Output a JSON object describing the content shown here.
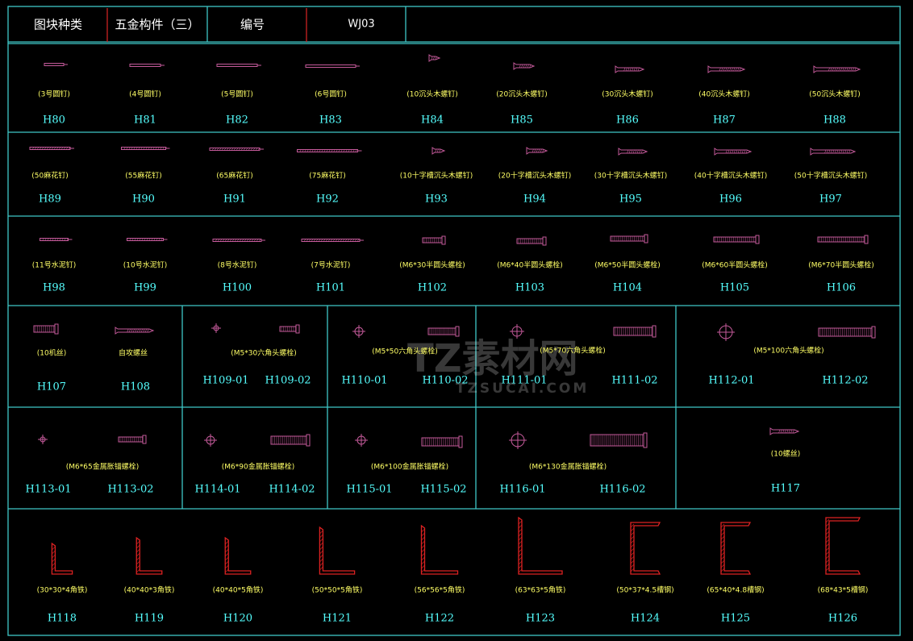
{
  "header": {
    "category_label": "图块种类",
    "category_value": "五金构件（三）",
    "number_label": "编号",
    "number_value": "WJ03"
  },
  "watermark": {
    "text": "TZ素材网",
    "url_text": "TZSUCAI.COM"
  },
  "colors": {
    "grid": "#3fc7c7",
    "divider_red": "#cc2222",
    "label": "#ffff66",
    "code": "#55ffff",
    "symbol": "#c45a9a",
    "steel": "#dd2222"
  },
  "rows": [
    {
      "items": [
        {
          "label": "(3号圆钉)",
          "code": "H80",
          "icon": "nail-icon"
        },
        {
          "label": "(4号圆钉)",
          "code": "H81",
          "icon": "nail-icon"
        },
        {
          "label": "(5号圆钉)",
          "code": "H82",
          "icon": "nail-icon"
        },
        {
          "label": "(6号圆钉)",
          "code": "H83",
          "icon": "nail-icon"
        },
        {
          "label": "(10沉头木螺钉)",
          "code": "H84",
          "icon": "wood-screw-icon"
        },
        {
          "label": "(20沉头木螺钉)",
          "code": "H85",
          "icon": "wood-screw-icon"
        },
        {
          "label": "(30沉头木螺钉)",
          "code": "H86",
          "icon": "wood-screw-icon"
        },
        {
          "label": "(40沉头木螺钉)",
          "code": "H87",
          "icon": "wood-screw-icon"
        },
        {
          "label": "(50沉头木螺钉)",
          "code": "H88",
          "icon": "wood-screw-icon"
        }
      ]
    },
    {
      "items": [
        {
          "label": "(50麻花钉)",
          "code": "H89",
          "icon": "twist-nail-icon"
        },
        {
          "label": "(55麻花钉)",
          "code": "H90",
          "icon": "twist-nail-icon"
        },
        {
          "label": "(65麻花钉)",
          "code": "H91",
          "icon": "twist-nail-icon"
        },
        {
          "label": "(75麻花钉)",
          "code": "H92",
          "icon": "twist-nail-icon"
        },
        {
          "label": "(10十字槽沉头木螺钉)",
          "code": "H93",
          "icon": "wood-screw-icon"
        },
        {
          "label": "(20十字槽沉头木螺钉)",
          "code": "H94",
          "icon": "wood-screw-icon"
        },
        {
          "label": "(30十字槽沉头木螺钉)",
          "code": "H95",
          "icon": "wood-screw-icon"
        },
        {
          "label": "(40十字槽沉头木螺钉)",
          "code": "H96",
          "icon": "wood-screw-icon"
        },
        {
          "label": "(50十字槽沉头木螺钉)",
          "code": "H97",
          "icon": "wood-screw-icon"
        }
      ]
    },
    {
      "items": [
        {
          "label": "(11号水泥钉)",
          "code": "H98",
          "icon": "twist-nail-icon"
        },
        {
          "label": "(10号水泥钉)",
          "code": "H99",
          "icon": "twist-nail-icon"
        },
        {
          "label": "(8号水泥钉)",
          "code": "H100",
          "icon": "twist-nail-icon"
        },
        {
          "label": "(7号水泥钉)",
          "code": "H101",
          "icon": "twist-nail-icon"
        },
        {
          "label": "(M6*30半圆头螺栓)",
          "code": "H102",
          "icon": "bolt-icon"
        },
        {
          "label": "(M6*40半圆头螺栓)",
          "code": "H103",
          "icon": "bolt-icon"
        },
        {
          "label": "(M6*50半圆头螺栓)",
          "code": "H104",
          "icon": "bolt-icon"
        },
        {
          "label": "(M6*60半圆头螺栓)",
          "code": "H105",
          "icon": "bolt-icon"
        },
        {
          "label": "(M6*70半圆头螺栓)",
          "code": "H106",
          "icon": "bolt-icon"
        }
      ]
    },
    {
      "groups": [
        {
          "label": "(10机丝)",
          "codes": [
            "H107"
          ]
        },
        {
          "label": "自攻螺丝",
          "codes": [
            "H108"
          ]
        },
        {
          "label": "(M5*30六角头螺栓)",
          "codes": [
            "H109-01",
            "H109-02"
          ]
        },
        {
          "label": "(M5*50六角头螺栓)",
          "codes": [
            "H110-01",
            "H110-02"
          ]
        },
        {
          "label": "(M5*70六角头螺栓)",
          "codes": [
            "H111-01",
            "H111-02"
          ]
        },
        {
          "label": "(M5*100六角头螺栓)",
          "codes": [
            "H112-01",
            "H112-02"
          ]
        }
      ]
    },
    {
      "groups": [
        {
          "label": "(M6*65金属胀锚螺栓)",
          "codes": [
            "H113-01",
            "H113-02"
          ]
        },
        {
          "label": "(M6*90金属胀锚螺栓)",
          "codes": [
            "H114-01",
            "H114-02"
          ]
        },
        {
          "label": "(M6*100金属胀锚螺栓)",
          "codes": [
            "H115-01",
            "H115-02"
          ]
        },
        {
          "label": "(M6*130金属胀锚螺栓)",
          "codes": [
            "H116-01",
            "H116-02"
          ]
        },
        {
          "label": "(10螺丝)",
          "codes": [
            "H117"
          ]
        }
      ]
    },
    {
      "items": [
        {
          "label": "(30*30*4角铁)",
          "code": "H118",
          "icon": "angle-steel-icon"
        },
        {
          "label": "(40*40*3角铁)",
          "code": "H119",
          "icon": "angle-steel-icon"
        },
        {
          "label": "(40*40*5角铁)",
          "code": "H120",
          "icon": "angle-steel-icon"
        },
        {
          "label": "(50*50*5角铁)",
          "code": "H121",
          "icon": "angle-steel-icon"
        },
        {
          "label": "(56*56*5角铁)",
          "code": "H122",
          "icon": "angle-steel-icon"
        },
        {
          "label": "(63*63*5角铁)",
          "code": "H123",
          "icon": "angle-steel-icon"
        },
        {
          "label": "(50*37*4.5槽钢)",
          "code": "H124",
          "icon": "channel-steel-icon"
        },
        {
          "label": "(65*40*4.8槽钢)",
          "code": "H125",
          "icon": "channel-steel-icon"
        },
        {
          "label": "(68*43*5槽钢)",
          "code": "H126",
          "icon": "channel-steel-icon"
        }
      ]
    }
  ]
}
